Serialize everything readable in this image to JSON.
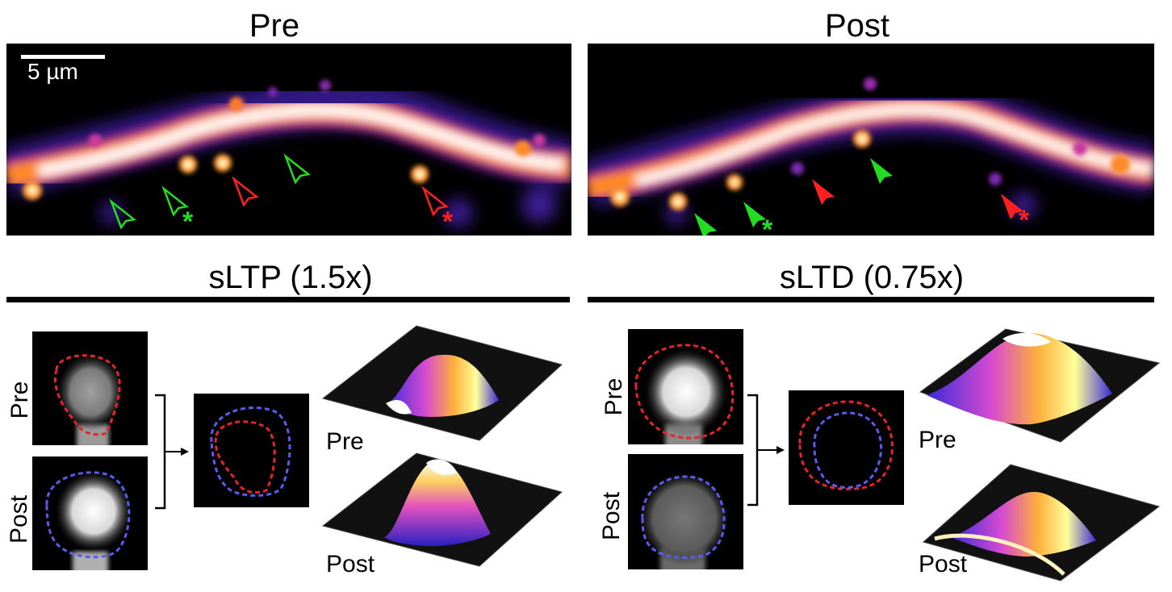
{
  "top": {
    "pre_title": "Pre",
    "post_title": "Post",
    "scale_bar_label": "5 µm",
    "markers": {
      "ltp_color": "#22dd22",
      "ltd_color": "#ff2020",
      "asterisk": "*"
    }
  },
  "bottom": {
    "ltp_title": "sLTP (1.5x)",
    "ltd_title": "sLTD (0.75x)",
    "ltp": {
      "pre_label": "Pre",
      "post_label": "Post",
      "surface_pre_label": "Pre",
      "surface_post_label": "Post",
      "relative_size": 1.5
    },
    "ltd": {
      "pre_label": "Pre",
      "post_label": "Post",
      "surface_pre_label": "Pre",
      "surface_post_label": "Post",
      "relative_size": 0.75
    },
    "outline_colors": {
      "pre": "#e8232a",
      "post": "#5a5cf0"
    }
  }
}
